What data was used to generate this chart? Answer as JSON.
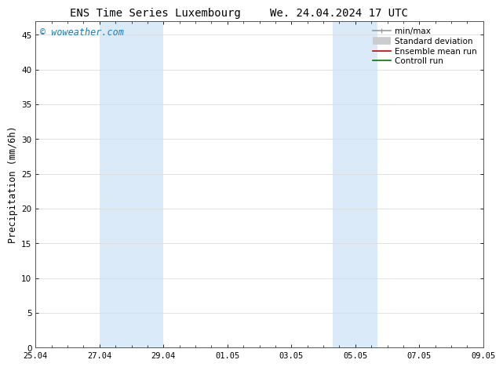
{
  "title_left": "ENS Time Series Luxembourg",
  "title_right": "We. 24.04.2024 17 UTC",
  "ylabel": "Precipitation (mm/6h)",
  "watermark": "© woweather.com",
  "watermark_color": "#1a7abf",
  "ylim": [
    0,
    47
  ],
  "yticks": [
    0,
    5,
    10,
    15,
    20,
    25,
    30,
    35,
    40,
    45
  ],
  "xlim_start": 0,
  "xlim_end": 14,
  "xtick_labels": [
    "25.04",
    "27.04",
    "29.04",
    "01.05",
    "03.05",
    "05.05",
    "07.05",
    "09.05"
  ],
  "xtick_positions": [
    0,
    2,
    4,
    6,
    8,
    10,
    12,
    14
  ],
  "shaded_regions": [
    {
      "xstart": 2,
      "xend": 4,
      "color": "#daeaf8"
    },
    {
      "xstart": 9.3,
      "xend": 10.7,
      "color": "#daeaf8"
    }
  ],
  "background_color": "#ffffff",
  "plot_bg_color": "#ffffff",
  "grid_color": "#dddddd",
  "legend_items": [
    {
      "label": "min/max",
      "color": "#999999",
      "lw": 1.2
    },
    {
      "label": "Standard deviation",
      "color": "#cccccc",
      "lw": 7
    },
    {
      "label": "Ensemble mean run",
      "color": "#cc0000",
      "lw": 1.2
    },
    {
      "label": "Controll run",
      "color": "#007700",
      "lw": 1.2
    }
  ],
  "title_fontsize": 10,
  "tick_fontsize": 7.5,
  "ylabel_fontsize": 8.5,
  "watermark_fontsize": 8.5,
  "legend_fontsize": 7.5
}
